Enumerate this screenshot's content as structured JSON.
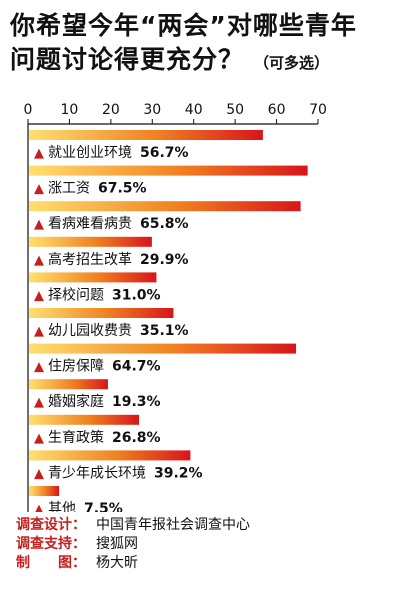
{
  "title_line1": "你希望今年“两会”对哪些青年",
  "title_line2": "问题讨论得更充分？",
  "title_note": "（可多选）",
  "chart_data": {
    "type": "bar",
    "orientation": "horizontal",
    "xlim": [
      0,
      70
    ],
    "ticks": [
      0,
      10,
      20,
      30,
      40,
      50,
      60,
      70
    ],
    "marker": "▲",
    "categories": [
      "就业创业环境",
      "涨工资",
      "看病难看病贵",
      "高考招生改革",
      "择校问题",
      "幼儿园收费贵",
      "住房保障",
      "婚姻家庭",
      "生育政策",
      "青少年成长环境",
      "其他"
    ],
    "values": [
      56.7,
      67.5,
      65.8,
      29.9,
      31.0,
      35.1,
      64.7,
      19.3,
      26.8,
      39.2,
      7.5
    ],
    "value_labels": [
      "56.7%",
      "67.5%",
      "65.8%",
      "29.9%",
      "31.0%",
      "35.1%",
      "64.7%",
      "19.3%",
      "26.8%",
      "39.2%",
      "7.5%"
    ],
    "colors": {
      "bar_start": "#ffe070",
      "bar_mid": "#f08020",
      "bar_end": "#d8141c",
      "marker": "#c81e1e",
      "axis": "#111111"
    }
  },
  "credits": [
    {
      "key": "调查设计：",
      "value": "中国青年报社会调查中心"
    },
    {
      "key": "调查支持：",
      "value": "搜狐网"
    },
    {
      "key": "制　　图：",
      "value": "杨大昕"
    }
  ]
}
